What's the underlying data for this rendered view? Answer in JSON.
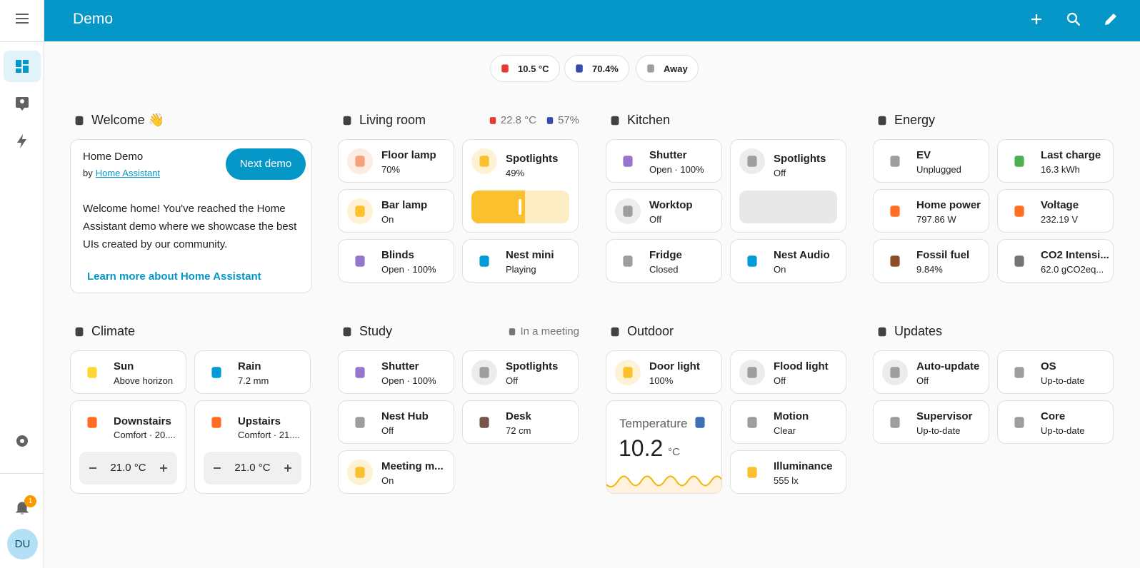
{
  "header": {
    "title": "Demo"
  },
  "badges": [
    {
      "text": "10.5 °C",
      "color": "#e53935"
    },
    {
      "text": "70.4%",
      "color": "#3949ab"
    },
    {
      "text": "Away",
      "color": "#9e9e9e"
    }
  ],
  "sidebar": {
    "notification_count": "1",
    "user_initials": "DU"
  },
  "sections": [
    {
      "title": "Welcome 👋",
      "card": {
        "title": "Home Demo",
        "by": "by",
        "link": "Home Assistant",
        "button": "Next demo",
        "body": "Welcome home! You've reached the Home Assistant demo where we showcase the best UIs created by our community.",
        "learn_more": "Learn more about Home Assistant"
      }
    },
    {
      "title": "Living room",
      "badges": [
        {
          "text": "22.8 °C",
          "color": "#e53935"
        },
        {
          "text": "57%",
          "color": "#3949ab"
        }
      ],
      "tiles": [
        {
          "name": "Floor lamp",
          "state": "70%",
          "color": "#f4a27a",
          "active": true
        },
        {
          "name": "Spotlights",
          "state": "49%",
          "color": "#fbc02d",
          "active": true,
          "kind": "slider"
        },
        {
          "name": "Bar lamp",
          "state": "On",
          "color": "#fbc02d",
          "active": true
        },
        {
          "name": "Blinds",
          "state": "Open · 100%",
          "color": "#9575cd",
          "active": false
        },
        {
          "name": "Nest mini",
          "state": "Playing",
          "color": "#039bd5",
          "active": false
        }
      ]
    },
    {
      "title": "Kitchen",
      "tiles": [
        {
          "name": "Shutter",
          "state": "Open · 100%",
          "color": "#9575cd",
          "active": false
        },
        {
          "name": "Spotlights",
          "state": "Off",
          "color": "#9e9e9e",
          "active": true,
          "kind": "slider-off"
        },
        {
          "name": "Worktop",
          "state": "Off",
          "color": "#9e9e9e",
          "active": true
        },
        {
          "name": "Fridge",
          "state": "Closed",
          "color": "#9e9e9e",
          "active": false
        },
        {
          "name": "Nest Audio",
          "state": "On",
          "color": "#039bd5",
          "active": false
        }
      ]
    },
    {
      "title": "Energy",
      "tiles": [
        {
          "name": "EV",
          "state": "Unplugged",
          "color": "#9e9e9e",
          "active": false
        },
        {
          "name": "Last charge",
          "state": "16.3 kWh",
          "color": "#4caf50",
          "active": false
        },
        {
          "name": "Home power",
          "state": "797.86 W",
          "color": "#ff6f22",
          "active": false
        },
        {
          "name": "Voltage",
          "state": "232.19 V",
          "color": "#ff6f22",
          "active": false
        },
        {
          "name": "Fossil fuel",
          "state": "9.84%",
          "color": "#8d4e2a",
          "active": false
        },
        {
          "name": "CO2 Intensi...",
          "state": "62.0 gCO2eq...",
          "color": "#757575",
          "active": false
        }
      ]
    },
    {
      "title": "Climate",
      "tiles": [
        {
          "name": "Sun",
          "state": "Above horizon",
          "color": "#fdd835",
          "active": false
        },
        {
          "name": "Rain",
          "state": "7.2 mm",
          "color": "#039bd5",
          "active": false
        },
        {
          "name": "Downstairs",
          "state": "Comfort · 20....",
          "color": "#ff6f22",
          "active": false,
          "kind": "thermostat",
          "target": "21.0 °C"
        },
        {
          "name": "Upstairs",
          "state": "Comfort · 21....",
          "color": "#ff6f22",
          "active": false,
          "kind": "thermostat",
          "target": "21.0 °C"
        }
      ]
    },
    {
      "title": "Study",
      "badges": [
        {
          "text": "In a meeting",
          "color": "#757575"
        }
      ],
      "tiles": [
        {
          "name": "Shutter",
          "state": "Open · 100%",
          "color": "#9575cd",
          "active": false
        },
        {
          "name": "Spotlights",
          "state": "Off",
          "color": "#9e9e9e",
          "active": true
        },
        {
          "name": "Nest Hub",
          "state": "Off",
          "color": "#9e9e9e",
          "active": false
        },
        {
          "name": "Desk",
          "state": "72 cm",
          "color": "#795548",
          "active": false
        },
        {
          "name": "Meeting m...",
          "state": "On",
          "color": "#fbc02d",
          "active": true
        }
      ]
    },
    {
      "title": "Outdoor",
      "tiles": [
        {
          "name": "Door light",
          "state": "100%",
          "color": "#fbc02d",
          "active": true
        },
        {
          "name": "Flood light",
          "state": "Off",
          "color": "#9e9e9e",
          "active": true
        },
        {
          "name": "Temperature",
          "value": "10.2",
          "unit": "°C",
          "color": "#3f6fb5",
          "kind": "graph"
        },
        {
          "name": "Motion",
          "state": "Clear",
          "color": "#9e9e9e",
          "active": false
        },
        {
          "name": "Illuminance",
          "state": "555 lx",
          "color": "#fbc02d",
          "active": false
        }
      ]
    },
    {
      "title": "Updates",
      "tiles": [
        {
          "name": "Auto-update",
          "state": "Off",
          "color": "#9e9e9e",
          "active": true
        },
        {
          "name": "OS",
          "state": "Up-to-date",
          "color": "#9e9e9e",
          "active": false
        },
        {
          "name": "Supervisor",
          "state": "Up-to-date",
          "color": "#9e9e9e",
          "active": false
        },
        {
          "name": "Core",
          "state": "Up-to-date",
          "color": "#9e9e9e",
          "active": false
        }
      ]
    }
  ]
}
